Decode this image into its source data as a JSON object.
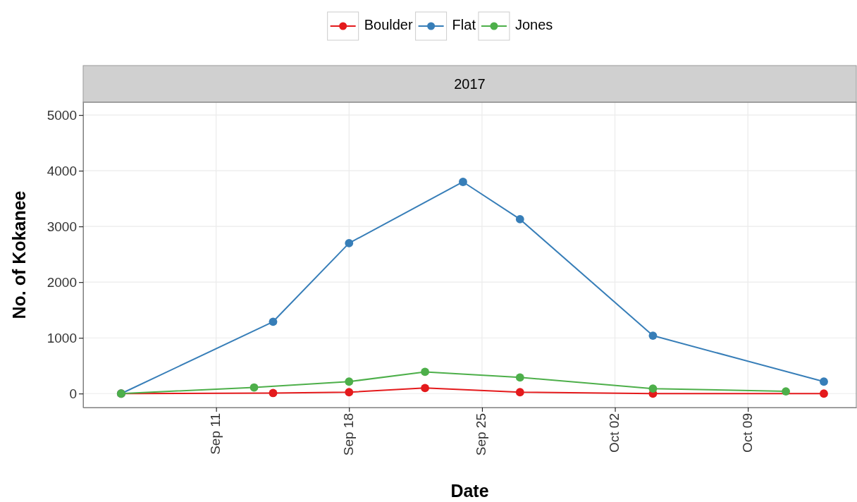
{
  "chart_data": {
    "type": "line",
    "subtitle": "2017",
    "xlabel": "Date",
    "ylabel": "No. of Kokanee",
    "legend": "top",
    "grid": true,
    "marker": "circle",
    "line_style": "solid",
    "xlim": [
      "2017-09-04",
      "2017-10-14T17:00"
    ],
    "xticks": [
      {
        "value": "2017-09-11",
        "label": "Sep 11"
      },
      {
        "value": "2017-09-18",
        "label": "Sep 18"
      },
      {
        "value": "2017-09-25",
        "label": "Sep 25"
      },
      {
        "value": "2017-10-02",
        "label": "Oct 02"
      },
      {
        "value": "2017-10-09",
        "label": "Oct 09"
      }
    ],
    "ylim": [
      -250,
      5230
    ],
    "yticks": [
      0,
      1000,
      2000,
      3000,
      4000,
      5000
    ],
    "series": [
      {
        "name": "Boulder",
        "color": "#e41a1c",
        "x": [
          "2017-09-06",
          "2017-09-14",
          "2017-09-18",
          "2017-09-22",
          "2017-09-27",
          "2017-10-04",
          "2017-10-13"
        ],
        "values": [
          0,
          10,
          25,
          100,
          25,
          0,
          0
        ]
      },
      {
        "name": "Flat",
        "color": "#377eb8",
        "x": [
          "2017-09-06",
          "2017-09-14",
          "2017-09-18",
          "2017-09-24",
          "2017-09-27",
          "2017-10-04",
          "2017-10-13"
        ],
        "values": [
          0,
          1290,
          2700,
          3800,
          3130,
          1040,
          215
        ]
      },
      {
        "name": "Jones",
        "color": "#4daf4a",
        "x": [
          "2017-09-06",
          "2017-09-13",
          "2017-09-18",
          "2017-09-22",
          "2017-09-27",
          "2017-10-04",
          "2017-10-11"
        ],
        "values": [
          0,
          110,
          215,
          390,
          290,
          90,
          40
        ]
      }
    ]
  }
}
